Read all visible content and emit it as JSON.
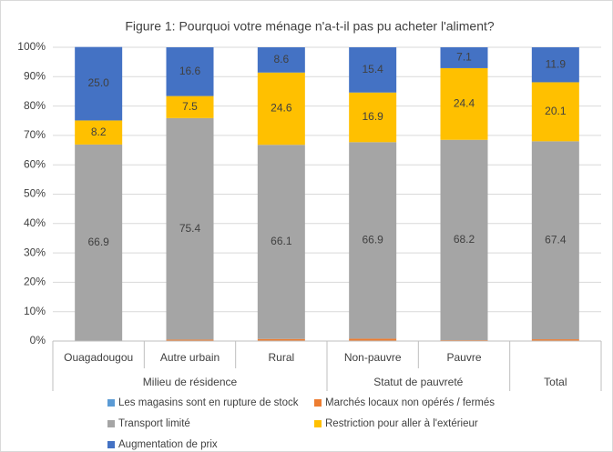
{
  "chart_data": {
    "type": "stacked_bar",
    "title": "Figure 1: Pourquoi votre ménage n'a-t-il  pas pu acheter l'aliment?",
    "categories": [
      "Ouagadougou",
      "Autre urbain",
      "Rural",
      "Non-pauvre",
      "Pauvre",
      null
    ],
    "groups": [
      {
        "name": "Milieu de résidence",
        "span": 3
      },
      {
        "name": "Statut de pauvreté",
        "span": 2
      },
      {
        "name": "Total",
        "span": 1
      }
    ],
    "series": [
      {
        "name": "Les magasins sont en rupture de stock",
        "color": "#5b9bd5",
        "values": [
          0,
          0,
          0,
          0,
          0,
          0
        ]
      },
      {
        "name": "Marchés locaux non opérés / fermés",
        "color": "#ed7d31",
        "values": [
          0,
          0.5,
          0.7,
          0.8,
          0.3,
          0.6
        ]
      },
      {
        "name": "Transport limité",
        "color": "#a5a5a5",
        "values": [
          66.9,
          75.4,
          66.1,
          66.9,
          68.2,
          67.4
        ],
        "value_labels": [
          "66.9",
          "75.4",
          "66.1",
          "66.9",
          "68.2",
          "67.4"
        ]
      },
      {
        "name": "Restriction pour aller à l'extérieur",
        "color": "#ffc000",
        "values": [
          8.2,
          7.5,
          24.6,
          16.9,
          24.4,
          20.1
        ],
        "value_labels": [
          "8.2",
          "7.5",
          "24.6",
          "16.9",
          "24.4",
          "20.1"
        ]
      },
      {
        "name": "Augmentation de prix",
        "color": "#4472c4",
        "values": [
          25.0,
          16.6,
          8.6,
          15.4,
          7.1,
          11.9
        ],
        "value_labels": [
          "25.0",
          "16.6",
          "8.6",
          "15.4",
          "7.1",
          "11.9"
        ]
      }
    ],
    "ylim": [
      0,
      100
    ],
    "yticks": [
      {
        "value": 0,
        "label": "0%"
      },
      {
        "value": 10,
        "label": "10%"
      },
      {
        "value": 20,
        "label": "20%"
      },
      {
        "value": 30,
        "label": "30%"
      },
      {
        "value": 40,
        "label": "40%"
      },
      {
        "value": 50,
        "label": "50%"
      },
      {
        "value": 60,
        "label": "60%"
      },
      {
        "value": 70,
        "label": "70%"
      },
      {
        "value": 80,
        "label": "80%"
      },
      {
        "value": 90,
        "label": "90%"
      },
      {
        "value": 100,
        "label": "100%"
      }
    ],
    "grid": true
  }
}
